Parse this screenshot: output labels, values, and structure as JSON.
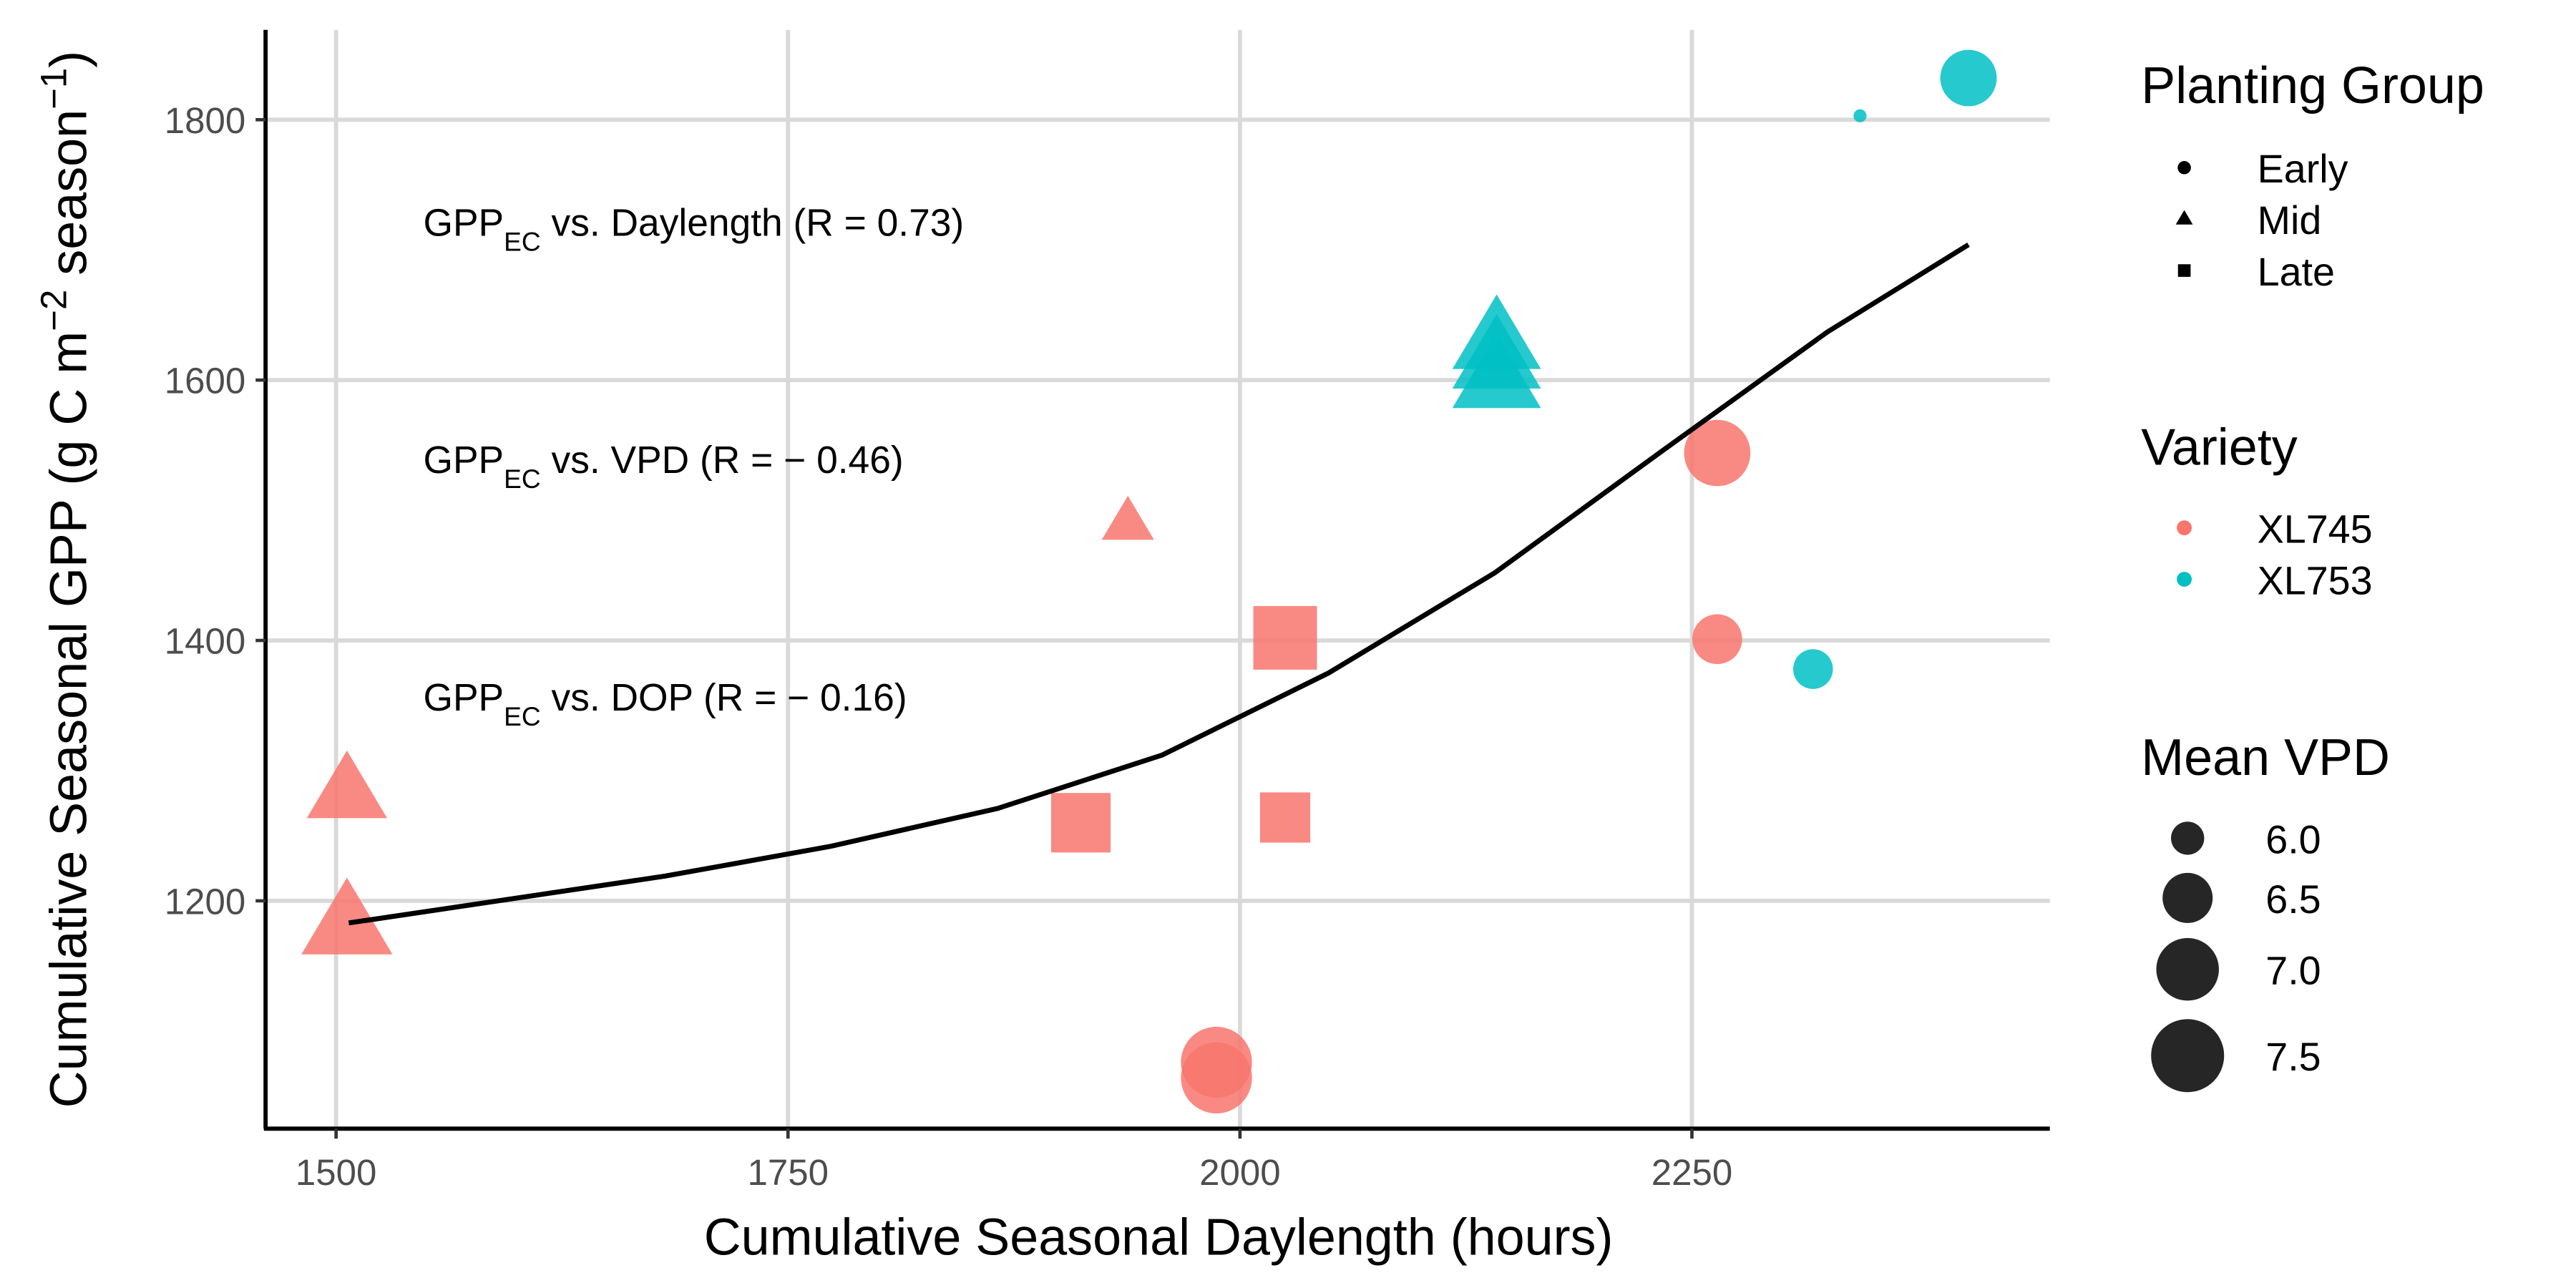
{
  "chart_data": {
    "type": "scatter",
    "x_label": "Cumulative Seasonal Daylength (hours)",
    "y_label": [
      "Cumulative Seasonal GPP (g C m",
      "−2",
      " season",
      "−1",
      ")"
    ],
    "xlim": [
      1461,
      2448
    ],
    "xticks": [
      1500,
      1750,
      2000,
      2250
    ],
    "ylim": [
      1025,
      1869
    ],
    "yticks": [
      1200,
      1400,
      1600,
      1800
    ],
    "grid": true,
    "annotations": [
      [
        "GPP",
        "EC",
        " vs. Daylength (R = 0.73)"
      ],
      [
        "GPP",
        "EC",
        " vs. VPD (R = − 0.46)"
      ],
      [
        "GPP",
        "EC",
        " vs. DOP (R = − 0.16)"
      ]
    ],
    "shape_legend": {
      "title": "Planting Group",
      "items": [
        "Early",
        "Mid",
        "Late"
      ]
    },
    "color_legend_title": "Variety",
    "size_legend": {
      "title": "Mean VPD",
      "ticks": [
        {
          "value": 6,
          "label": "6.0"
        },
        6.5,
        {
          "value": 7,
          "label": "7.0"
        },
        7.5
      ]
    },
    "series": [
      {
        "name": "XL745",
        "color": "#F8766D",
        "x": [
          2264,
          2264,
          1938,
          2025,
          1912,
          2025,
          1506,
          1506,
          1987,
          1987
        ],
        "values": [
          1544,
          1401,
          1490,
          1402,
          1260,
          1264,
          1283,
          1181,
          1076,
          1064
        ],
        "sizes": [
          7.17,
          6.49,
          6.2,
          7.2,
          7.0,
          6.6,
          7.0,
          7.4,
          7.4,
          7.4
        ],
        "groups": [
          "Early",
          "Early",
          "Mid",
          "Late",
          "Late",
          "Late",
          "Mid",
          "Mid",
          "Early",
          "Early"
        ]
      },
      {
        "name": "XL753",
        "color": "#00BFC4",
        "x": [
          2403,
          2343,
          2142,
          2142,
          2142,
          2317
        ],
        "values": [
          1832,
          1803,
          1630,
          1615,
          1600,
          1378
        ],
        "sizes": [
          6.74,
          5.67,
          7.3,
          7.3,
          7.3,
          6.17
        ],
        "groups": [
          "Early",
          "Early",
          "Mid",
          "Mid",
          "Mid",
          "Early"
        ]
      }
    ],
    "trend": {
      "color": "#000000",
      "x": [
        1507,
        1682,
        1774,
        1866,
        1957,
        2049,
        2141,
        2233,
        2325,
        2403
      ],
      "values": [
        1183,
        1219,
        1242,
        1271,
        1312,
        1375,
        1452,
        1545,
        1637,
        1704
      ]
    }
  }
}
